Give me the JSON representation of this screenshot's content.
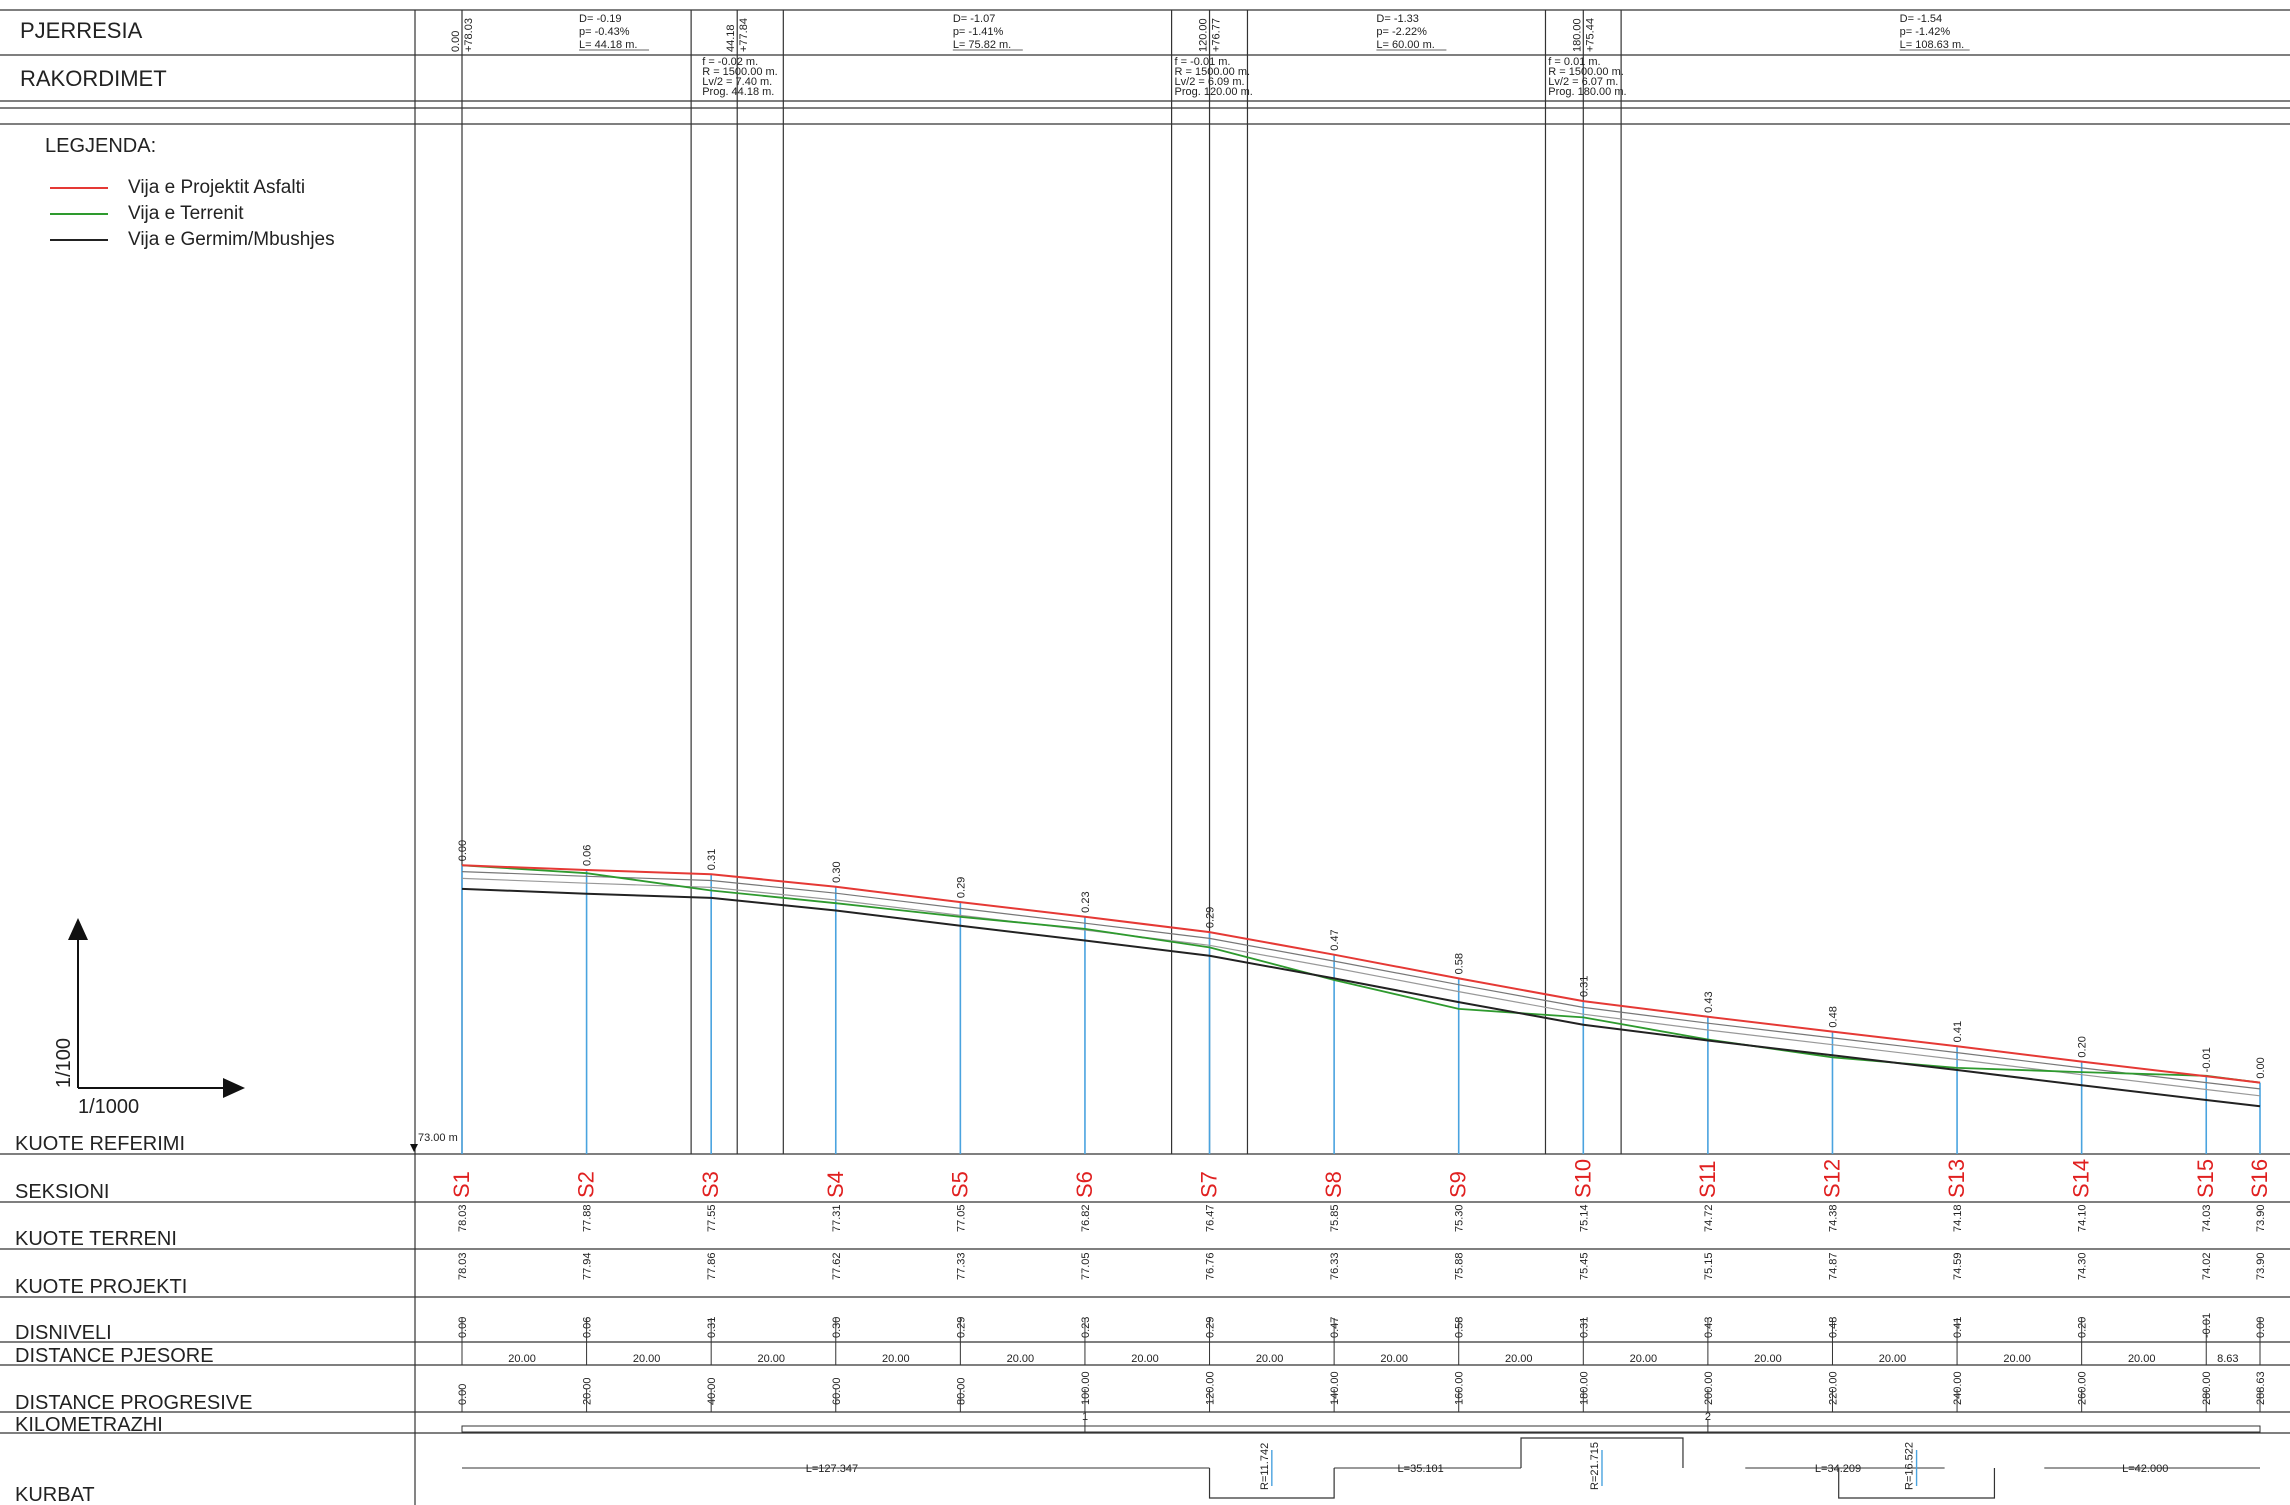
{
  "rows": {
    "pjerresia": "PJERRESIA",
    "rakordimet": "RAKORDIMET",
    "kuote_referimi": "KUOTE REFERIMI",
    "seksioni": "SEKSIONI",
    "kuote_terreni": "KUOTE TERRENI",
    "kuote_projekti": "KUOTE PROJEKTI",
    "disniveli": "DISNIVELI",
    "distance_pjesore": "DISTANCE PJESORE",
    "distance_progresive": "DISTANCE PROGRESIVE",
    "kilometrazhi": "KILOMETRAZHI",
    "kurbat": "KURBAT"
  },
  "legend": {
    "title": "LEGJENDA:",
    "items": [
      {
        "label": "Vija e Projektit Asfalti",
        "color": "#e53935"
      },
      {
        "label": "Vija e Terrenit",
        "color": "#2e9a2e"
      },
      {
        "label": "Vija e Germim/Mbushjes",
        "color": "#222222"
      }
    ]
  },
  "scale": {
    "vertical": "1/100",
    "horizontal": "1/1000"
  },
  "reference_level": "73.00 m",
  "grades": [
    {
      "d": "D= -0.19",
      "p": "p= -0.43%",
      "l": "L= 44.18 m."
    },
    {
      "d": "D= -1.07",
      "p": "p= -1.41%",
      "l": "L= 75.82 m."
    },
    {
      "d": "D= -1.33",
      "p": "p= -2.22%",
      "l": "L= 60.00 m."
    },
    {
      "d": "D= -1.54",
      "p": "p= -1.42%",
      "l": "L= 108.63 m."
    }
  ],
  "grade_break_labels": [
    {
      "top": "0.00",
      "bottom": "+78.03"
    },
    {
      "top": "44.18",
      "bottom": "+77.84"
    },
    {
      "top": "120.00",
      "bottom": "+76.77"
    },
    {
      "top": "180.00",
      "bottom": "+75.44"
    }
  ],
  "vertical_curves": [
    {
      "f": "f = -0.02 m.",
      "r": "R = 1500.00 m.",
      "lv": "Lv/2 = 7.40 m.",
      "prog": "Prog. 44.18 m."
    },
    {
      "f": "f = -0.01 m.",
      "r": "R = 1500.00 m.",
      "lv": "Lv/2 = 6.09 m.",
      "prog": "Prog. 120.00 m."
    },
    {
      "f": "f = 0.01 m.",
      "r": "R = 1500.00 m.",
      "lv": "Lv/2 = 6.07 m.",
      "prog": "Prog. 180.00 m."
    }
  ],
  "sections": [
    "S1",
    "S2",
    "S3",
    "S4",
    "S5",
    "S6",
    "S7",
    "S8",
    "S9",
    "S10",
    "S11",
    "S12",
    "S13",
    "S14",
    "S15",
    "S16"
  ],
  "chainage": [
    0,
    20,
    40,
    60,
    80,
    100,
    120,
    140,
    160,
    180,
    200,
    220,
    240,
    260,
    280,
    288.63
  ],
  "kuote_terreni": [
    "78.03",
    "77.88",
    "77.55",
    "77.31",
    "77.05",
    "76.82",
    "76.47",
    "75.85",
    "75.30",
    "75.14",
    "74.72",
    "74.38",
    "74.18",
    "74.10",
    "74.03",
    "73.90"
  ],
  "kuote_projekti": [
    "78.03",
    "77.94",
    "77.86",
    "77.62",
    "77.33",
    "77.05",
    "76.76",
    "76.33",
    "75.88",
    "75.45",
    "75.15",
    "74.87",
    "74.59",
    "74.30",
    "74.02",
    "73.90"
  ],
  "disniveli": [
    "0.00",
    "0.06",
    "0.31",
    "0.30",
    "0.29",
    "0.23",
    "0.29",
    "0.47",
    "0.58",
    "0.31",
    "0.43",
    "0.48",
    "0.41",
    "0.20",
    "-0.01",
    "0.00"
  ],
  "profile_labels": [
    "0.00",
    "0.06",
    "0.31",
    "0.30",
    "0.29",
    "0.23",
    "0.29",
    "0.47",
    "0.58",
    "0.31",
    "0.43",
    "0.48",
    "0.41",
    "0.20",
    "-0.01",
    "0.00"
  ],
  "distance_pjesore": [
    "20.00",
    "20.00",
    "20.00",
    "20.00",
    "20.00",
    "20.00",
    "20.00",
    "20.00",
    "20.00",
    "20.00",
    "20.00",
    "20.00",
    "20.00",
    "20.00",
    "8.63"
  ],
  "distance_progresive": [
    "0.00",
    "20.00",
    "40.00",
    "60.00",
    "80.00",
    "100.00",
    "120.00",
    "140.00",
    "160.00",
    "180.00",
    "200.00",
    "220.00",
    "240.00",
    "260.00",
    "280.00",
    "288.63"
  ],
  "kilometrazhi_marks": [
    "1",
    "2"
  ],
  "kurbat_lengths": [
    "L=127.347",
    "L=35.101",
    "L=34.209",
    "L=42.000"
  ],
  "kurbat_curves": [
    {
      "label": "R=11.742"
    },
    {
      "label": "R=21.715"
    },
    {
      "label": "R=16.522"
    }
  ],
  "colors": {
    "project": "#e53935",
    "terrain": "#2e9a2e",
    "excavation": "#222222",
    "station_line": "#4aa3df",
    "section_label": "#e02020"
  }
}
